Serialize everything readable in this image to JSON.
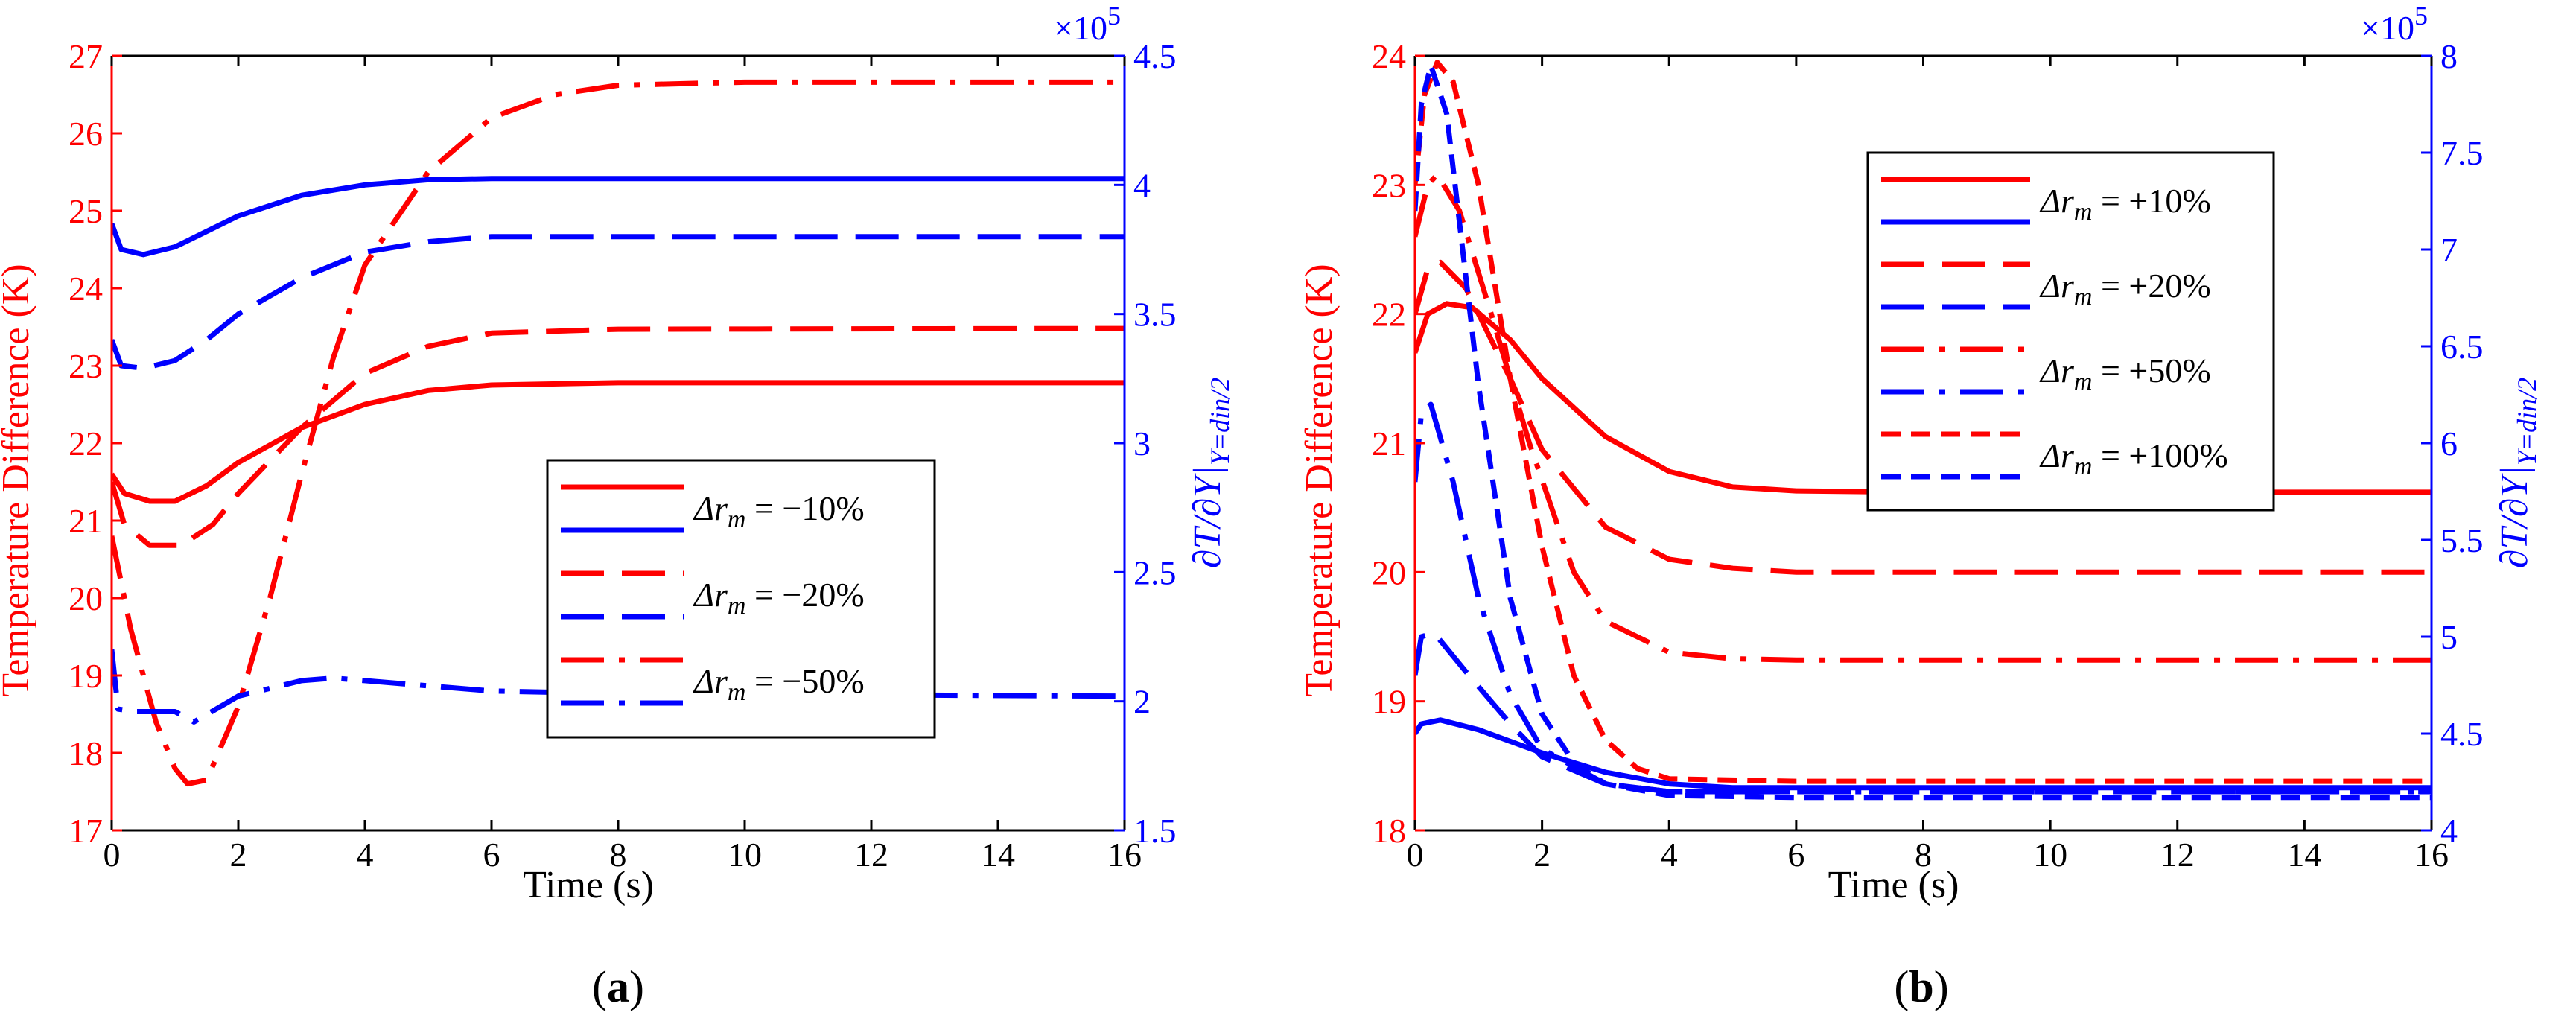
{
  "chart_data": [
    {
      "panel_label": "(a)",
      "panel_letter": "a",
      "type": "line",
      "xlabel": "Time (s)",
      "ylabel_left": "Temperature Difference (K)",
      "ylabel_right": "∂T/∂Y|Y=din/2",
      "ylabel_right_parts": {
        "main": "∂T/∂Y|",
        "sub": "Y=din/2"
      },
      "right_multiplier": "×10",
      "right_multiplier_exp": "5",
      "xlim": [
        0,
        16
      ],
      "ylim_left": [
        17,
        27
      ],
      "ylim_right": [
        1.5,
        4.5
      ],
      "xticks": [
        "0",
        "2",
        "4",
        "6",
        "8",
        "10",
        "12",
        "14",
        "16"
      ],
      "yticks_left": [
        "17",
        "18",
        "19",
        "20",
        "21",
        "22",
        "23",
        "24",
        "25",
        "26",
        "27"
      ],
      "yticks_right": [
        "1.5",
        "2",
        "2.5",
        "3",
        "3.5",
        "4",
        "4.5"
      ],
      "legend": {
        "placement": "center-right",
        "entries": [
          {
            "text": "Δr",
            "sub": "m",
            "value": " = −10%",
            "styles": [
              "solid"
            ]
          },
          {
            "text": "Δr",
            "sub": "m",
            "value": " = −20%",
            "styles": [
              "dash"
            ]
          },
          {
            "text": "Δr",
            "sub": "m",
            "value": " = −50%",
            "styles": [
              "dashdot"
            ]
          }
        ]
      },
      "series": [
        {
          "name": "Δrm = −10% (temperature)",
          "axis": "left",
          "color": "#ff0000",
          "style": "solid",
          "points": [
            [
              0,
              21.6
            ],
            [
              0.2,
              21.35
            ],
            [
              0.6,
              21.25
            ],
            [
              1,
              21.25
            ],
            [
              1.5,
              21.45
            ],
            [
              2,
              21.75
            ],
            [
              3,
              22.2
            ],
            [
              4,
              22.5
            ],
            [
              5,
              22.68
            ],
            [
              6,
              22.75
            ],
            [
              8,
              22.78
            ],
            [
              16,
              22.78
            ]
          ]
        },
        {
          "name": "Δrm = −20% (temperature)",
          "axis": "left",
          "color": "#ff0000",
          "style": "dash",
          "points": [
            [
              0,
              21.5
            ],
            [
              0.2,
              20.95
            ],
            [
              0.6,
              20.68
            ],
            [
              1.1,
              20.68
            ],
            [
              1.6,
              20.95
            ],
            [
              2,
              21.35
            ],
            [
              3,
              22.2
            ],
            [
              4,
              22.9
            ],
            [
              5,
              23.25
            ],
            [
              6,
              23.42
            ],
            [
              8,
              23.47
            ],
            [
              16,
              23.48
            ]
          ]
        },
        {
          "name": "Δrm = −50% (temperature)",
          "axis": "left",
          "color": "#ff0000",
          "style": "dashdot",
          "points": [
            [
              0,
              20.8
            ],
            [
              0.3,
              19.6
            ],
            [
              0.7,
              18.4
            ],
            [
              1,
              17.8
            ],
            [
              1.2,
              17.6
            ],
            [
              1.5,
              17.65
            ],
            [
              2,
              18.6
            ],
            [
              2.5,
              20
            ],
            [
              3,
              21.6
            ],
            [
              3.5,
              23.1
            ],
            [
              4,
              24.3
            ],
            [
              5,
              25.5
            ],
            [
              6,
              26.2
            ],
            [
              7,
              26.5
            ],
            [
              8,
              26.62
            ],
            [
              10,
              26.66
            ],
            [
              16,
              26.66
            ]
          ]
        },
        {
          "name": "Δrm = −10% (gradient)",
          "axis": "right",
          "color": "#0000ff",
          "style": "solid",
          "points": [
            [
              0,
              3.85
            ],
            [
              0.15,
              3.75
            ],
            [
              0.5,
              3.73
            ],
            [
              1,
              3.76
            ],
            [
              1.5,
              3.82
            ],
            [
              2,
              3.88
            ],
            [
              3,
              3.96
            ],
            [
              4,
              4.0
            ],
            [
              5,
              4.02
            ],
            [
              6,
              4.025
            ],
            [
              8,
              4.025
            ],
            [
              16,
              4.025
            ]
          ]
        },
        {
          "name": "Δrm = −20% (gradient)",
          "axis": "right",
          "color": "#0000ff",
          "style": "dash",
          "points": [
            [
              0,
              3.4
            ],
            [
              0.15,
              3.3
            ],
            [
              0.5,
              3.29
            ],
            [
              1,
              3.32
            ],
            [
              1.5,
              3.4
            ],
            [
              2,
              3.5
            ],
            [
              3,
              3.64
            ],
            [
              4,
              3.74
            ],
            [
              5,
              3.78
            ],
            [
              6,
              3.8
            ],
            [
              8,
              3.8
            ],
            [
              16,
              3.8
            ]
          ]
        },
        {
          "name": "Δrm = −50% (gradient)",
          "axis": "right",
          "color": "#0000ff",
          "style": "dashdot",
          "points": [
            [
              0,
              2.2
            ],
            [
              0.1,
              1.97
            ],
            [
              0.4,
              1.96
            ],
            [
              1,
              1.96
            ],
            [
              1.3,
              1.92
            ],
            [
              2,
              2.02
            ],
            [
              2.5,
              2.05
            ],
            [
              3,
              2.08
            ],
            [
              3.5,
              2.09
            ],
            [
              4,
              2.08
            ],
            [
              6,
              2.04
            ],
            [
              8,
              2.03
            ],
            [
              16,
              2.02
            ]
          ]
        }
      ]
    },
    {
      "panel_label": "(b)",
      "panel_letter": "b",
      "type": "line",
      "xlabel": "Time (s)",
      "ylabel_left": "Temperature Difference (K)",
      "ylabel_right": "∂T/∂Y|Y=din/2",
      "ylabel_right_parts": {
        "main": "∂T/∂Y|",
        "sub": "Y=din/2"
      },
      "right_multiplier": "×10",
      "right_multiplier_exp": "5",
      "xlim": [
        0,
        16
      ],
      "ylim_left": [
        18,
        24
      ],
      "ylim_right": [
        4,
        8
      ],
      "xticks": [
        "0",
        "2",
        "4",
        "6",
        "8",
        "10",
        "12",
        "14",
        "16"
      ],
      "yticks_left": [
        "18",
        "19",
        "20",
        "21",
        "22",
        "23",
        "24"
      ],
      "yticks_right": [
        "4",
        "4.5",
        "5",
        "5.5",
        "6",
        "6.5",
        "7",
        "7.5",
        "8"
      ],
      "legend": {
        "placement": "top-right",
        "entries": [
          {
            "text": "Δr",
            "sub": "m",
            "value": " = +10%",
            "styles": [
              "solid",
              "solid"
            ]
          },
          {
            "text": "Δr",
            "sub": "m",
            "value": " = +20%",
            "styles": [
              "dash",
              "dash"
            ]
          },
          {
            "text": "Δr",
            "sub": "m",
            "value": " = +50%",
            "styles": [
              "dashdot",
              "dashdot"
            ]
          },
          {
            "text": "Δr",
            "sub": "m",
            "value": " = +100%",
            "styles": [
              "shortdash",
              "shortdash"
            ]
          }
        ]
      },
      "series": [
        {
          "name": "Δrm = +10% (temperature)",
          "axis": "left",
          "color": "#ff0000",
          "style": "solid",
          "points": [
            [
              0,
              21.7
            ],
            [
              0.2,
              22.0
            ],
            [
              0.5,
              22.08
            ],
            [
              0.9,
              22.05
            ],
            [
              1.5,
              21.8
            ],
            [
              2,
              21.5
            ],
            [
              3,
              21.05
            ],
            [
              4,
              20.78
            ],
            [
              5,
              20.66
            ],
            [
              6,
              20.63
            ],
            [
              8,
              20.62
            ],
            [
              16,
              20.62
            ]
          ]
        },
        {
          "name": "Δrm = +20% (temperature)",
          "axis": "left",
          "color": "#ff0000",
          "style": "dash",
          "points": [
            [
              0,
              22.0
            ],
            [
              0.2,
              22.35
            ],
            [
              0.4,
              22.4
            ],
            [
              0.8,
              22.2
            ],
            [
              1.5,
              21.5
            ],
            [
              2,
              20.95
            ],
            [
              3,
              20.35
            ],
            [
              4,
              20.1
            ],
            [
              5,
              20.03
            ],
            [
              6,
              20.0
            ],
            [
              8,
              20.0
            ],
            [
              16,
              20.0
            ]
          ]
        },
        {
          "name": "Δrm = +50% (temperature)",
          "axis": "left",
          "color": "#ff0000",
          "style": "dashdot",
          "points": [
            [
              0,
              22.6
            ],
            [
              0.2,
              23.0
            ],
            [
              0.35,
              23.08
            ],
            [
              0.7,
              22.8
            ],
            [
              1.2,
              22.0
            ],
            [
              1.8,
              21.0
            ],
            [
              2.5,
              20.0
            ],
            [
              3,
              19.62
            ],
            [
              4,
              19.38
            ],
            [
              5,
              19.33
            ],
            [
              6,
              19.32
            ],
            [
              8,
              19.32
            ],
            [
              16,
              19.32
            ]
          ]
        },
        {
          "name": "Δrm = +100% (temperature)",
          "axis": "left",
          "color": "#ff0000",
          "style": "shortdash",
          "points": [
            [
              0,
              23.0
            ],
            [
              0.15,
              23.7
            ],
            [
              0.35,
              23.95
            ],
            [
              0.6,
              23.8
            ],
            [
              1,
              23.0
            ],
            [
              1.5,
              21.5
            ],
            [
              2,
              20.2
            ],
            [
              2.5,
              19.2
            ],
            [
              3,
              18.7
            ],
            [
              3.5,
              18.48
            ],
            [
              4,
              18.4
            ],
            [
              6,
              18.38
            ],
            [
              8,
              18.38
            ],
            [
              16,
              18.38
            ]
          ]
        },
        {
          "name": "Δrm = +10% (gradient)",
          "axis": "right",
          "color": "#0000ff",
          "style": "solid",
          "points": [
            [
              0,
              4.5
            ],
            [
              0.1,
              4.55
            ],
            [
              0.4,
              4.57
            ],
            [
              1,
              4.52
            ],
            [
              2,
              4.4
            ],
            [
              3,
              4.3
            ],
            [
              4,
              4.24
            ],
            [
              5,
              4.22
            ],
            [
              6,
              4.22
            ],
            [
              8,
              4.22
            ],
            [
              16,
              4.22
            ]
          ]
        },
        {
          "name": "Δrm = +20% (gradient)",
          "axis": "right",
          "color": "#0000ff",
          "style": "dash",
          "points": [
            [
              0,
              4.8
            ],
            [
              0.1,
              5.0
            ],
            [
              0.3,
              5.02
            ],
            [
              0.8,
              4.82
            ],
            [
              1.5,
              4.55
            ],
            [
              2,
              4.38
            ],
            [
              3,
              4.24
            ],
            [
              4,
              4.2
            ],
            [
              6,
              4.2
            ],
            [
              16,
              4.2
            ]
          ]
        },
        {
          "name": "Δrm = +50% (gradient)",
          "axis": "right",
          "color": "#0000ff",
          "style": "dashdot",
          "points": [
            [
              0,
              5.8
            ],
            [
              0.1,
              6.15
            ],
            [
              0.25,
              6.2
            ],
            [
              0.6,
              5.8
            ],
            [
              1,
              5.2
            ],
            [
              1.5,
              4.7
            ],
            [
              2,
              4.42
            ],
            [
              3,
              4.24
            ],
            [
              4,
              4.2
            ],
            [
              6,
              4.2
            ],
            [
              16,
              4.2
            ]
          ]
        },
        {
          "name": "Δrm = +100% (gradient)",
          "axis": "right",
          "color": "#0000ff",
          "style": "shortdash",
          "points": [
            [
              0,
              7.2
            ],
            [
              0.1,
              7.75
            ],
            [
              0.25,
              7.95
            ],
            [
              0.5,
              7.7
            ],
            [
              1,
              6.3
            ],
            [
              1.5,
              5.2
            ],
            [
              2,
              4.6
            ],
            [
              2.5,
              4.35
            ],
            [
              3,
              4.24
            ],
            [
              4,
              4.18
            ],
            [
              6,
              4.17
            ],
            [
              16,
              4.17
            ]
          ]
        }
      ]
    }
  ],
  "colors": {
    "left_axis": "#ff0000",
    "right_axis": "#0000ff",
    "frame": "#000000"
  }
}
